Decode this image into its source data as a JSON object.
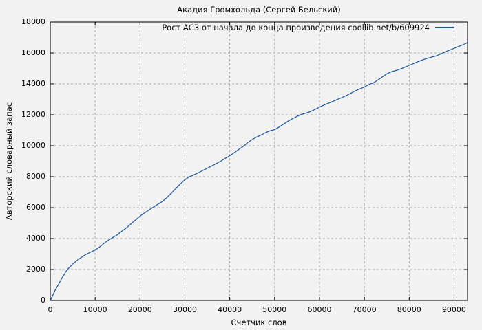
{
  "chart_data": {
    "type": "line",
    "title": "Акадия Громхольда (Сергей Бельский)",
    "xlabel": "Счетчик слов",
    "ylabel": "Авторский словарный запас",
    "legend": "Рост АСЗ от начала до конца произведения coollib.net/b/609924",
    "legend_position": "top-right-inside",
    "grid": true,
    "grid_style": "dashed",
    "xlim": [
      0,
      93000
    ],
    "ylim": [
      0,
      18000
    ],
    "x_ticks": [
      0,
      10000,
      20000,
      30000,
      40000,
      50000,
      60000,
      70000,
      80000,
      90000
    ],
    "x_tick_labels": [
      "0",
      "10000",
      "20000",
      "30000",
      "40000",
      "50000",
      "60000",
      "70000",
      "80000",
      "90000"
    ],
    "y_ticks": [
      0,
      2000,
      4000,
      6000,
      8000,
      10000,
      12000,
      14000,
      16000,
      18000
    ],
    "y_tick_labels": [
      "0",
      "2000",
      "4000",
      "6000",
      "8000",
      "10000",
      "12000",
      "14000",
      "16000",
      "18000"
    ],
    "colors": {
      "line": "#1a539e",
      "background": "#f2f2f2",
      "grid": "#a8a8a8",
      "frame": "#000000",
      "text": "#000000"
    },
    "series": [
      {
        "name": "Рост АСЗ от начала до конца произведения coollib.net/b/609924",
        "points": [
          [
            0,
            0
          ],
          [
            500,
            300
          ],
          [
            1000,
            620
          ],
          [
            1500,
            880
          ],
          [
            2000,
            1120
          ],
          [
            2500,
            1400
          ],
          [
            3000,
            1630
          ],
          [
            3500,
            1880
          ],
          [
            4000,
            2060
          ],
          [
            4500,
            2210
          ],
          [
            5000,
            2350
          ],
          [
            6000,
            2590
          ],
          [
            7000,
            2800
          ],
          [
            8000,
            2980
          ],
          [
            9000,
            3120
          ],
          [
            10000,
            3260
          ],
          [
            11000,
            3460
          ],
          [
            12000,
            3700
          ],
          [
            13000,
            3900
          ],
          [
            14000,
            4080
          ],
          [
            15000,
            4250
          ],
          [
            16000,
            4490
          ],
          [
            17000,
            4700
          ],
          [
            18000,
            4950
          ],
          [
            19000,
            5200
          ],
          [
            20000,
            5450
          ],
          [
            21000,
            5650
          ],
          [
            22000,
            5850
          ],
          [
            23000,
            6040
          ],
          [
            24000,
            6220
          ],
          [
            25000,
            6400
          ],
          [
            26000,
            6650
          ],
          [
            27000,
            6940
          ],
          [
            28000,
            7240
          ],
          [
            29000,
            7540
          ],
          [
            30000,
            7800
          ],
          [
            31000,
            8000
          ],
          [
            32000,
            8120
          ],
          [
            33000,
            8250
          ],
          [
            34000,
            8400
          ],
          [
            35000,
            8550
          ],
          [
            36000,
            8700
          ],
          [
            37000,
            8850
          ],
          [
            38000,
            9000
          ],
          [
            39000,
            9180
          ],
          [
            40000,
            9350
          ],
          [
            41000,
            9550
          ],
          [
            42000,
            9760
          ],
          [
            43000,
            9960
          ],
          [
            44000,
            10200
          ],
          [
            45000,
            10400
          ],
          [
            46000,
            10560
          ],
          [
            47000,
            10700
          ],
          [
            48000,
            10850
          ],
          [
            49000,
            10970
          ],
          [
            50000,
            11040
          ],
          [
            51000,
            11210
          ],
          [
            52000,
            11400
          ],
          [
            53000,
            11590
          ],
          [
            54000,
            11750
          ],
          [
            55000,
            11900
          ],
          [
            56000,
            12030
          ],
          [
            57000,
            12110
          ],
          [
            58000,
            12210
          ],
          [
            59000,
            12350
          ],
          [
            60000,
            12500
          ],
          [
            61000,
            12630
          ],
          [
            62000,
            12750
          ],
          [
            63000,
            12870
          ],
          [
            64000,
            13000
          ],
          [
            65000,
            13110
          ],
          [
            66000,
            13250
          ],
          [
            67000,
            13400
          ],
          [
            68000,
            13550
          ],
          [
            69000,
            13680
          ],
          [
            70000,
            13800
          ],
          [
            71000,
            13950
          ],
          [
            72000,
            14060
          ],
          [
            73000,
            14250
          ],
          [
            74000,
            14450
          ],
          [
            75000,
            14650
          ],
          [
            76000,
            14780
          ],
          [
            77000,
            14860
          ],
          [
            78000,
            14960
          ],
          [
            79000,
            15080
          ],
          [
            80000,
            15200
          ],
          [
            81000,
            15320
          ],
          [
            82000,
            15440
          ],
          [
            83000,
            15550
          ],
          [
            84000,
            15650
          ],
          [
            85000,
            15730
          ],
          [
            86000,
            15810
          ],
          [
            87000,
            15930
          ],
          [
            88000,
            16060
          ],
          [
            89000,
            16180
          ],
          [
            90000,
            16300
          ],
          [
            91000,
            16420
          ],
          [
            92000,
            16540
          ],
          [
            93000,
            16660
          ]
        ]
      }
    ]
  }
}
